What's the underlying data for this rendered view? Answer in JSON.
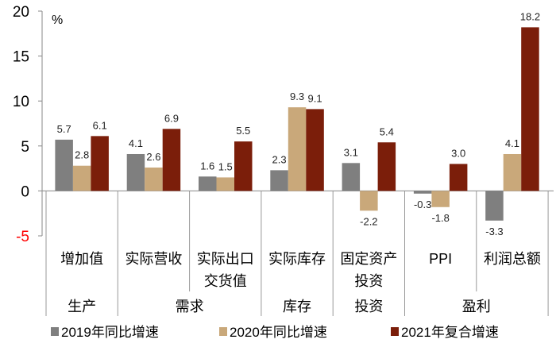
{
  "chart_data": {
    "type": "bar",
    "unit_label": "%",
    "ylim": [
      -5,
      20
    ],
    "yticks": [
      "20",
      "15",
      "10",
      "5",
      "0",
      "-5"
    ],
    "grid": false,
    "legend_position": "bottom",
    "categories": [
      "增加值",
      "实际营收",
      "实际出口\n交货值",
      "实际库存",
      "固定资产\n投资",
      "PPI",
      "利润总额"
    ],
    "groups": [
      {
        "label": "生产",
        "span": 1
      },
      {
        "label": "需求",
        "span": 2
      },
      {
        "label": "库存",
        "span": 1
      },
      {
        "label": "投资",
        "span": 1
      },
      {
        "label": "盈利",
        "span": 2
      }
    ],
    "series": [
      {
        "name": "2019年同比增速",
        "color": "#7f7f7f",
        "values": [
          5.7,
          4.1,
          1.6,
          2.3,
          3.1,
          -0.3,
          -3.3
        ]
      },
      {
        "name": "2020年同比增速",
        "color": "#c9a87a",
        "values": [
          2.8,
          2.6,
          1.5,
          9.3,
          -2.2,
          -1.8,
          4.1
        ]
      },
      {
        "name": "2021年复合增速",
        "color": "#7b1e0a",
        "values": [
          6.1,
          6.9,
          5.5,
          9.1,
          5.4,
          3.0,
          18.2
        ]
      }
    ],
    "data_labels": [
      [
        "5.7",
        "4.1",
        "1.6",
        "2.3",
        "3.1",
        "-0.3",
        "-3.3"
      ],
      [
        "2.8",
        "2.6",
        "1.5",
        "9.3",
        "-2.2",
        "-1.8",
        "4.1"
      ],
      [
        "6.1",
        "6.9",
        "5.5",
        "9.1",
        "5.4",
        "3.0",
        "18.2"
      ]
    ],
    "negative_tick_color": "#ff0000"
  }
}
